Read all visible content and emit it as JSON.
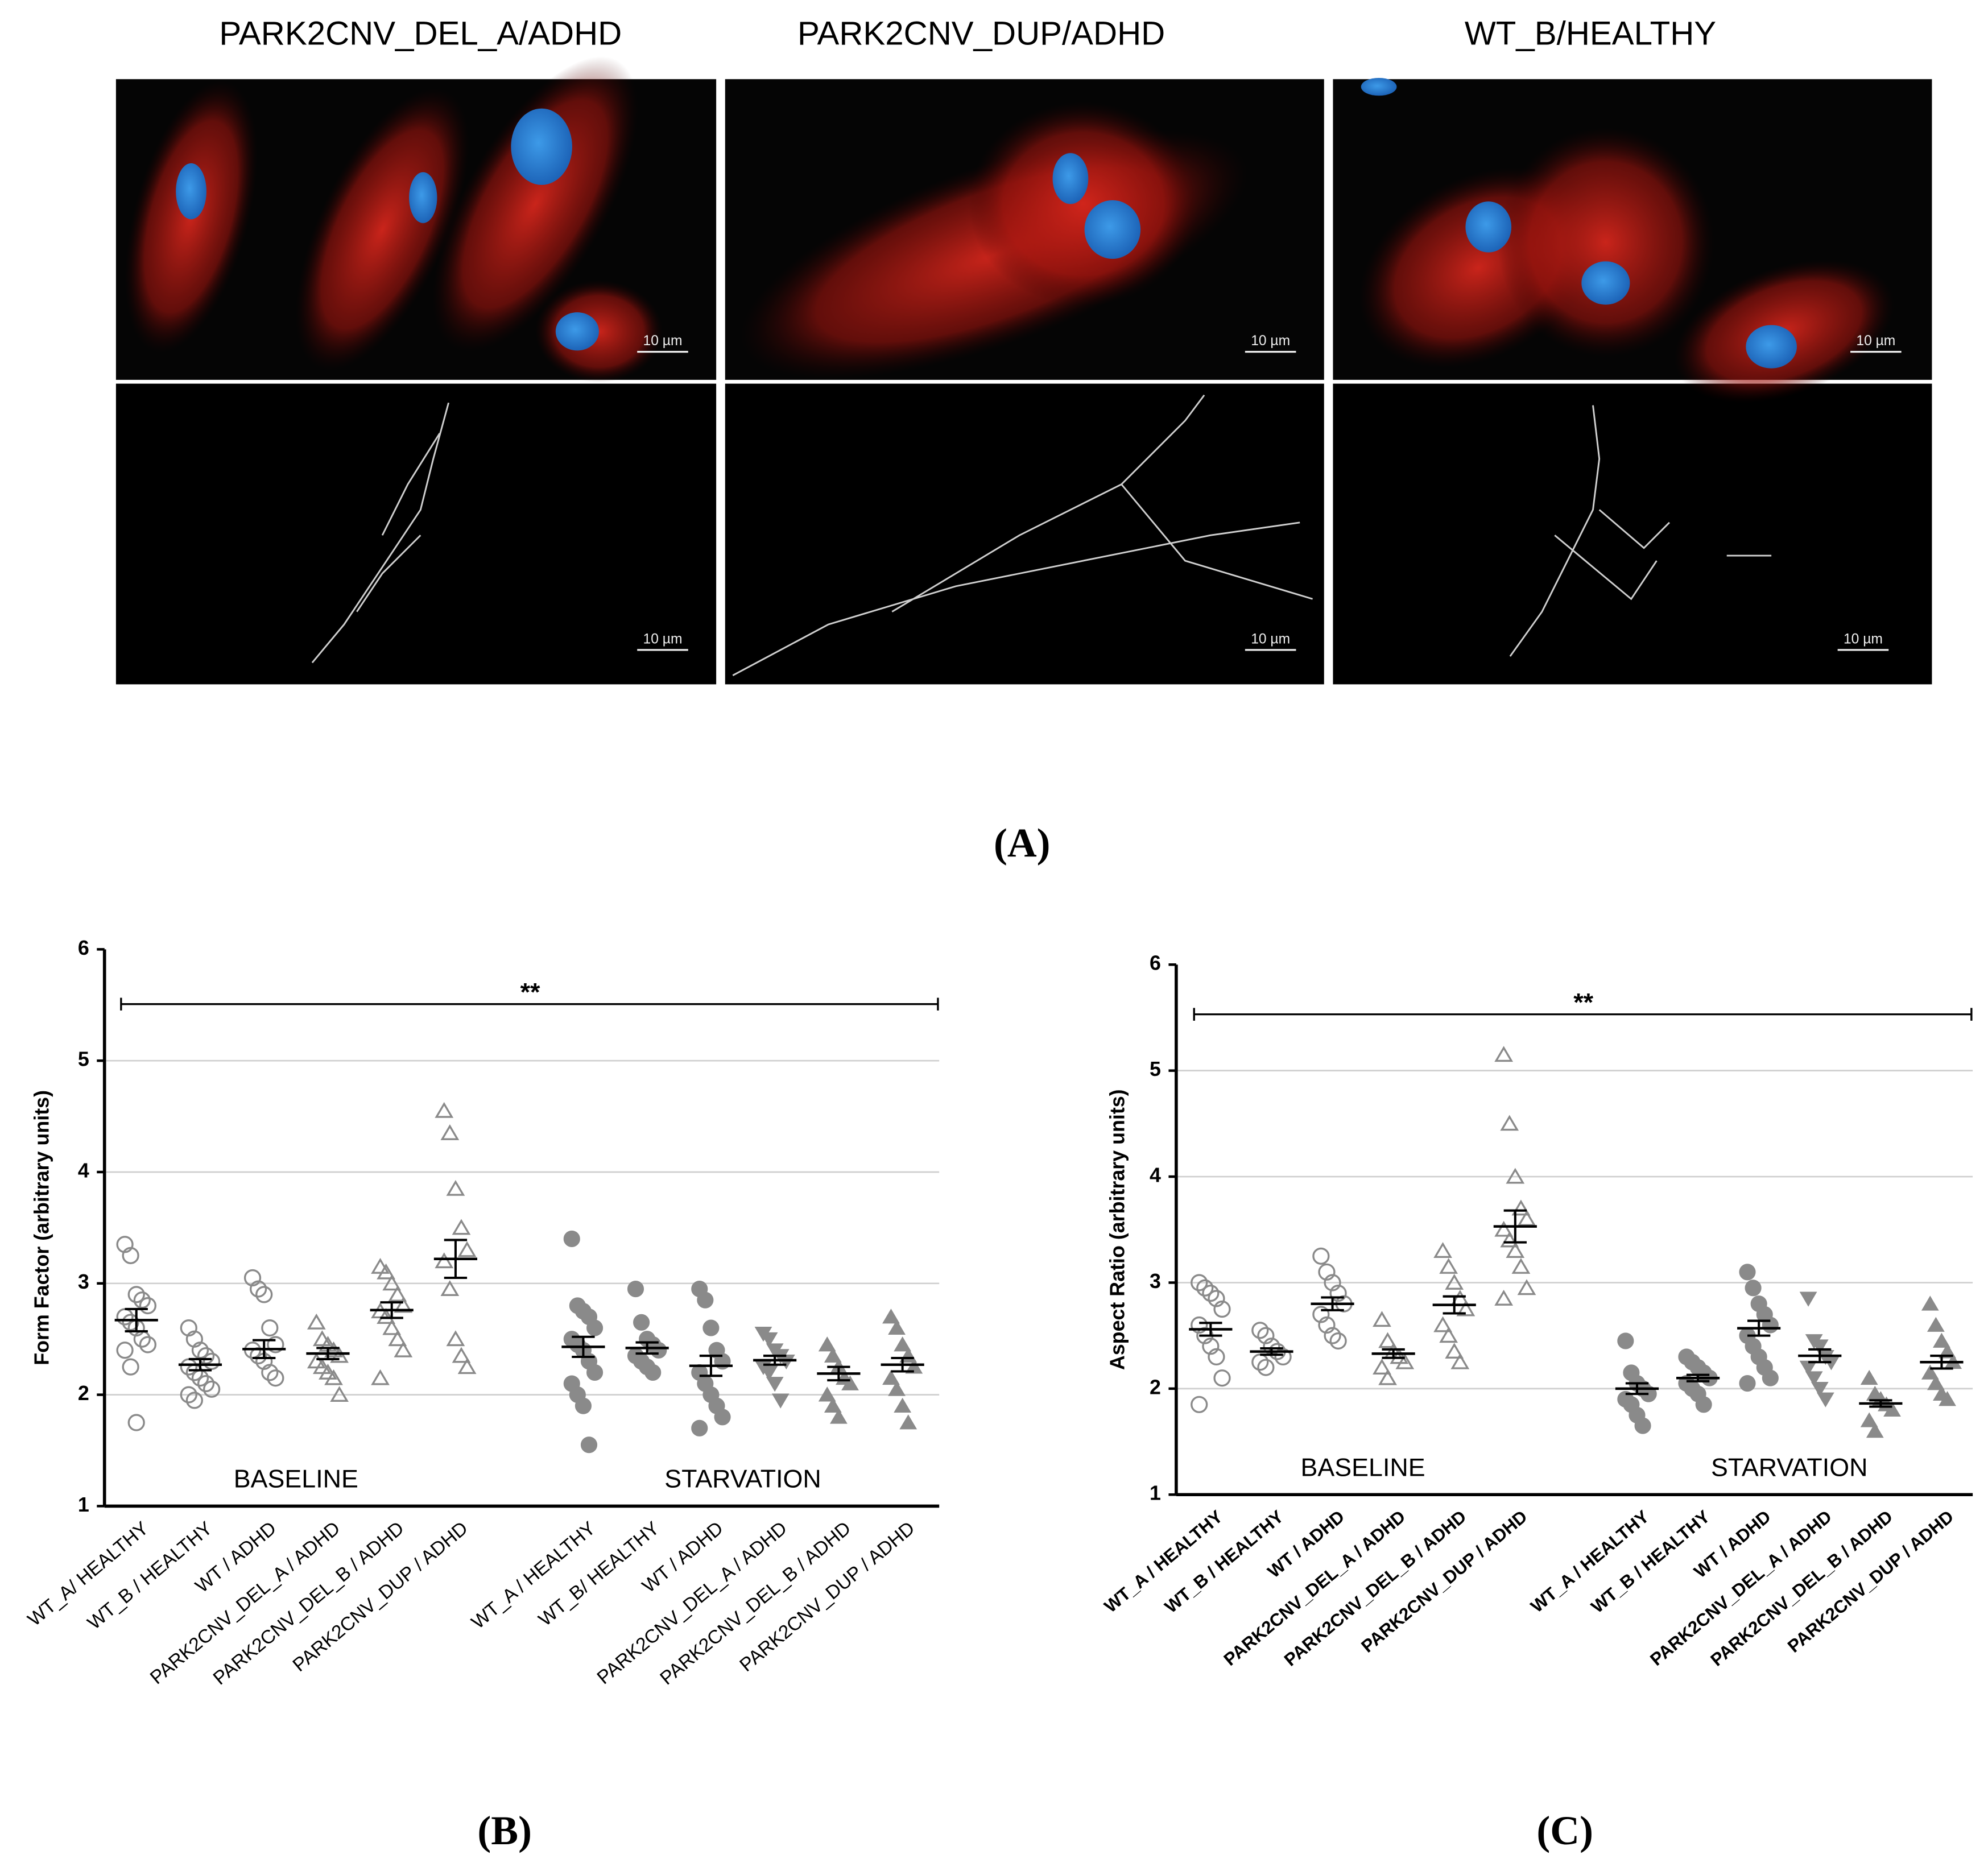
{
  "panel_a": {
    "titles": [
      "PARK2CNV_DEL_A/ADHD",
      "PARK2CNV_DUP/ADHD",
      "WT_B/HEALTHY"
    ],
    "scale_bars": [
      "10 µm",
      "10 µm",
      "10 µm",
      "10 µm",
      "10 µm",
      "10 µm"
    ],
    "label": "(A)"
  },
  "chart_data": [
    {
      "type": "scatter",
      "label": "(B)",
      "y_label": "Form Factor (arbitrary units)",
      "annotation": "**",
      "ylim": [
        1,
        6
      ],
      "yticks": [
        1,
        2,
        3,
        4,
        5,
        6
      ],
      "grid": true,
      "color": "#8a8a8a",
      "groups": [
        {
          "name": "BASELINE",
          "categories": [
            "WT_A/ HEALTHY",
            "WT_B / HEALTHY",
            "WT / ADHD",
            "PARK2CNV_DEL_A / ADHD",
            "PARK2CNV_DEL_B / ADHD",
            "PARK2CNV_DUP / ADHD"
          ],
          "markers": [
            "open-circle",
            "open-circle",
            "open-circle",
            "open-triangle",
            "open-triangle",
            "open-triangle"
          ],
          "points": [
            [
              3.35,
              3.25,
              2.9,
              2.85,
              2.8,
              2.7,
              2.65,
              2.6,
              2.5,
              2.45,
              2.4,
              2.25,
              1.75
            ],
            [
              2.6,
              2.5,
              2.4,
              2.35,
              2.3,
              2.25,
              2.2,
              2.15,
              2.1,
              2.05,
              2.0,
              1.95
            ],
            [
              3.05,
              2.95,
              2.9,
              2.6,
              2.45,
              2.4,
              2.35,
              2.3,
              2.2,
              2.15
            ],
            [
              2.65,
              2.5,
              2.45,
              2.4,
              2.35,
              2.3,
              2.25,
              2.2,
              2.15,
              2.0
            ],
            [
              3.15,
              3.1,
              3.0,
              2.9,
              2.8,
              2.75,
              2.7,
              2.6,
              2.5,
              2.4,
              2.15
            ],
            [
              4.55,
              4.35,
              3.85,
              3.5,
              3.3,
              3.2,
              2.95,
              2.5,
              2.35,
              2.25
            ]
          ],
          "means": [
            2.67,
            2.27,
            2.41,
            2.37,
            2.76,
            3.22
          ],
          "sems": [
            0.1,
            0.05,
            0.08,
            0.05,
            0.07,
            0.17
          ]
        },
        {
          "name": "STARVATION",
          "categories": [
            "WT_A / HEALTHY",
            "WT_B/ HEALTHY",
            "WT / ADHD",
            "PARK2CNV_DEL_A / ADHD",
            "PARK2CNV_DEL_B / ADHD",
            "PARK2CNV_DUP / ADHD"
          ],
          "markers": [
            "filled-circle",
            "filled-circle",
            "filled-circle",
            "filled-down-triangle",
            "filled-triangle",
            "filled-triangle"
          ],
          "points": [
            [
              3.4,
              2.8,
              2.75,
              2.7,
              2.6,
              2.5,
              2.45,
              2.4,
              2.3,
              2.2,
              2.1,
              2.0,
              1.9,
              1.55
            ],
            [
              2.95,
              2.65,
              2.5,
              2.45,
              2.4,
              2.35,
              2.3,
              2.25,
              2.2
            ],
            [
              2.95,
              2.85,
              2.6,
              2.4,
              2.3,
              2.2,
              2.1,
              2.0,
              1.9,
              1.8,
              1.7
            ],
            [
              2.55,
              2.5,
              2.4,
              2.35,
              2.3,
              2.25,
              2.2,
              2.1,
              1.95
            ],
            [
              2.45,
              2.35,
              2.25,
              2.15,
              2.1,
              2.0,
              1.9,
              1.8
            ],
            [
              2.7,
              2.6,
              2.45,
              2.35,
              2.25,
              2.15,
              2.05,
              1.9,
              1.75
            ]
          ],
          "means": [
            2.43,
            2.42,
            2.26,
            2.31,
            2.19,
            2.27
          ],
          "sems": [
            0.09,
            0.05,
            0.09,
            0.04,
            0.06,
            0.06
          ]
        }
      ]
    },
    {
      "type": "scatter",
      "label": "(C)",
      "y_label": "Aspect Ratio (arbitrary units)",
      "annotation": "**",
      "ylim": [
        1,
        6
      ],
      "yticks": [
        1,
        2,
        3,
        4,
        5,
        6
      ],
      "grid": true,
      "color": "#8a8a8a",
      "groups": [
        {
          "name": "BASELINE",
          "categories": [
            "WT_A / HEALTHY",
            "WT_B / HEALTHY",
            "WT / ADHD",
            "PARK2CNV_DEL_A / ADHD",
            "PARK2CNV_DEL_B / ADHD",
            "PARK2CNV_DUP / ADHD"
          ],
          "markers": [
            "open-circle",
            "open-circle",
            "open-circle",
            "open-triangle",
            "open-triangle",
            "open-triangle"
          ],
          "points": [
            [
              3.0,
              2.95,
              2.9,
              2.85,
              2.75,
              2.6,
              2.5,
              2.4,
              2.3,
              2.1,
              1.85
            ],
            [
              2.55,
              2.5,
              2.4,
              2.35,
              2.3,
              2.25,
              2.2
            ],
            [
              3.25,
              3.1,
              3.0,
              2.9,
              2.8,
              2.7,
              2.6,
              2.5,
              2.45
            ],
            [
              2.65,
              2.45,
              2.35,
              2.3,
              2.25,
              2.2,
              2.1
            ],
            [
              3.3,
              3.15,
              3.0,
              2.85,
              2.75,
              2.6,
              2.5,
              2.35,
              2.25
            ],
            [
              5.15,
              4.5,
              4.0,
              3.7,
              3.6,
              3.5,
              3.4,
              3.3,
              3.15,
              2.95,
              2.85
            ]
          ],
          "means": [
            2.56,
            2.35,
            2.8,
            2.33,
            2.79,
            3.53
          ],
          "sems": [
            0.06,
            0.03,
            0.06,
            0.04,
            0.08,
            0.15
          ]
        },
        {
          "name": "STARVATION",
          "categories": [
            "WT_A / HEALTHY",
            "WT_B / HEALTHY",
            "WT / ADHD",
            "PARK2CNV_DEL_A / ADHD",
            "PARK2CNV_DEL_B / ADHD",
            "PARK2CNV_DUP / ADHD"
          ],
          "markers": [
            "filled-circle",
            "filled-circle",
            "filled-circle",
            "filled-down-triangle",
            "filled-triangle",
            "filled-triangle"
          ],
          "points": [
            [
              2.45,
              2.15,
              2.05,
              2.0,
              1.95,
              1.9,
              1.85,
              1.75,
              1.65
            ],
            [
              2.3,
              2.25,
              2.2,
              2.15,
              2.1,
              2.05,
              2.0,
              1.95,
              1.85
            ],
            [
              3.1,
              2.95,
              2.8,
              2.7,
              2.6,
              2.5,
              2.4,
              2.3,
              2.2,
              2.1,
              2.05
            ],
            [
              2.85,
              2.45,
              2.4,
              2.3,
              2.25,
              2.2,
              2.1,
              2.0,
              1.9
            ],
            [
              2.1,
              1.95,
              1.9,
              1.85,
              1.8,
              1.7,
              1.6
            ],
            [
              2.8,
              2.6,
              2.45,
              2.35,
              2.25,
              2.15,
              2.05,
              1.95,
              1.9
            ]
          ],
          "means": [
            2.0,
            2.1,
            2.57,
            2.31,
            1.86,
            2.25
          ],
          "sems": [
            0.05,
            0.03,
            0.07,
            0.06,
            0.03,
            0.06
          ]
        }
      ]
    }
  ]
}
